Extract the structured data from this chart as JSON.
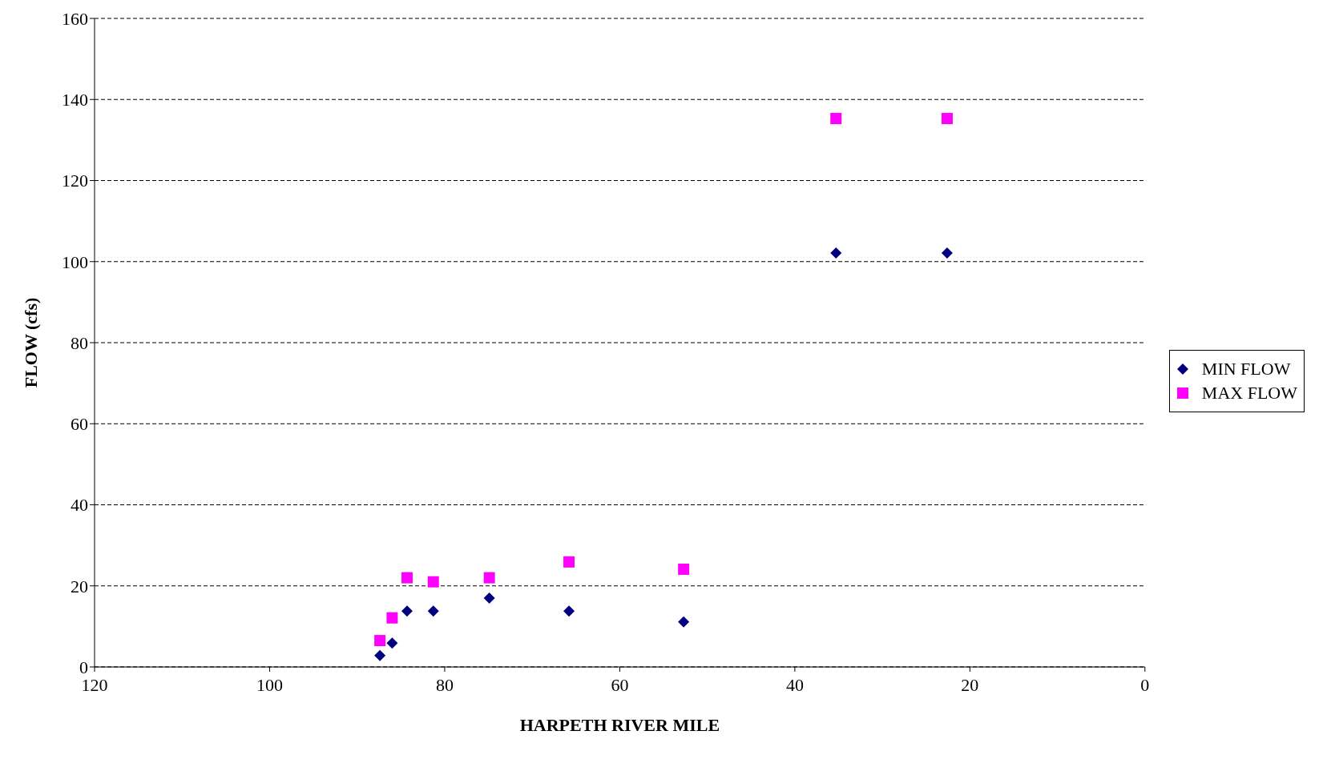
{
  "chart_data": {
    "type": "scatter",
    "xlabel": "HARPETH RIVER MILE",
    "ylabel": "FLOW (cfs)",
    "x": [
      87.4,
      86.0,
      84.3,
      81.3,
      74.9,
      65.8,
      52.7,
      35.3,
      22.6
    ],
    "series": [
      {
        "name": "MIN FLOW",
        "color": "#000080",
        "marker": "diamond",
        "values": [
          2.8,
          5.9,
          13.8,
          13.8,
          17.0,
          13.8,
          11.1,
          102.1,
          102.1
        ]
      },
      {
        "name": "MAX FLOW",
        "color": "#ff00ff",
        "marker": "square",
        "values": [
          6.5,
          12.1,
          22.0,
          21.0,
          22.0,
          25.9,
          24.1,
          135.3,
          135.3
        ]
      }
    ],
    "xlim": [
      120,
      0
    ],
    "xticks": [
      120,
      100,
      80,
      60,
      40,
      20,
      0
    ],
    "ylim": [
      0,
      160
    ],
    "yticks": [
      0,
      20,
      40,
      60,
      80,
      100,
      120,
      140,
      160
    ],
    "grid": "y",
    "legend": "right"
  }
}
